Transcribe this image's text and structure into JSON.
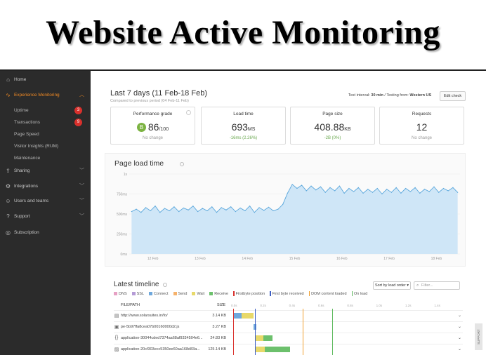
{
  "banner": {
    "title": "Website Active Monitoring"
  },
  "sidebar": {
    "items": [
      {
        "label": "Home",
        "icon": "home-icon"
      },
      {
        "label": "Experience Monitoring",
        "icon": "pulse-icon",
        "active": true
      },
      {
        "label": "Sharing",
        "icon": "share-icon"
      },
      {
        "label": "Integrations",
        "icon": "integrations-icon"
      },
      {
        "label": "Users and teams",
        "icon": "users-icon"
      },
      {
        "label": "Support",
        "icon": "help-icon"
      },
      {
        "label": "Subscription",
        "icon": "subscription-icon"
      }
    ],
    "subitems": [
      {
        "label": "Uptime",
        "badge": "3"
      },
      {
        "label": "Transactions",
        "badge": "9"
      },
      {
        "label": "Page Speed"
      },
      {
        "label": "Visitor Insights (RUM)"
      },
      {
        "label": "Maintenance"
      }
    ]
  },
  "header": {
    "period": "Last 7 days (11 Feb-18 Feb)",
    "compared": "Compared to previous period (04 Feb-11 Feb)",
    "test_interval_label": "Test interval:",
    "test_interval": "30 min",
    "testing_from_label": "/ Testing from:",
    "testing_from": "Western US",
    "edit_check": "Edit check"
  },
  "cards": [
    {
      "title": "Performance grade",
      "grade": "B",
      "value": "86",
      "unit": "/100",
      "sub": "No change"
    },
    {
      "title": "Load time",
      "value": "693",
      "unit": "MS",
      "sub": "-16ms (2.26%)"
    },
    {
      "title": "Page size",
      "value": "408.88",
      "unit": "KB",
      "sub": "-2B (0%)"
    },
    {
      "title": "Requests",
      "value": "12",
      "unit": "",
      "sub": "No change"
    }
  ],
  "chart_data": {
    "type": "area",
    "title": "Page load time",
    "y_ticks": [
      "0ms",
      "250ms",
      "500ms",
      "750ms",
      "1s"
    ],
    "ylim": [
      0,
      1000
    ],
    "x_ticks": [
      "12 Feb",
      "13 Feb",
      "14 Feb",
      "15 Feb",
      "16 Feb",
      "17 Feb",
      "18 Feb"
    ],
    "x_range": [
      11.5,
      18.5
    ],
    "series": [
      {
        "values": [
          [
            11.55,
            530
          ],
          [
            11.65,
            560
          ],
          [
            11.75,
            520
          ],
          [
            11.85,
            580
          ],
          [
            11.95,
            540
          ],
          [
            12.05,
            600
          ],
          [
            12.15,
            520
          ],
          [
            12.25,
            570
          ],
          [
            12.35,
            540
          ],
          [
            12.45,
            590
          ],
          [
            12.55,
            530
          ],
          [
            12.65,
            575
          ],
          [
            12.75,
            550
          ],
          [
            12.85,
            600
          ],
          [
            12.95,
            530
          ],
          [
            13.05,
            570
          ],
          [
            13.15,
            540
          ],
          [
            13.25,
            590
          ],
          [
            13.35,
            520
          ],
          [
            13.45,
            580
          ],
          [
            13.55,
            550
          ],
          [
            13.65,
            590
          ],
          [
            13.75,
            530
          ],
          [
            13.85,
            575
          ],
          [
            13.95,
            540
          ],
          [
            14.05,
            600
          ],
          [
            14.15,
            520
          ],
          [
            14.25,
            580
          ],
          [
            14.35,
            545
          ],
          [
            14.45,
            585
          ],
          [
            14.55,
            540
          ],
          [
            14.65,
            560
          ],
          [
            14.75,
            620
          ],
          [
            14.85,
            760
          ],
          [
            14.95,
            870
          ],
          [
            15.05,
            820
          ],
          [
            15.15,
            860
          ],
          [
            15.25,
            790
          ],
          [
            15.35,
            850
          ],
          [
            15.45,
            800
          ],
          [
            15.55,
            840
          ],
          [
            15.65,
            770
          ],
          [
            15.75,
            830
          ],
          [
            15.85,
            790
          ],
          [
            15.95,
            850
          ],
          [
            16.05,
            760
          ],
          [
            16.15,
            820
          ],
          [
            16.25,
            780
          ],
          [
            16.35,
            830
          ],
          [
            16.45,
            760
          ],
          [
            16.55,
            810
          ],
          [
            16.65,
            770
          ],
          [
            16.75,
            820
          ],
          [
            16.85,
            750
          ],
          [
            16.95,
            810
          ],
          [
            17.05,
            770
          ],
          [
            17.15,
            830
          ],
          [
            17.25,
            760
          ],
          [
            17.35,
            820
          ],
          [
            17.45,
            780
          ],
          [
            17.55,
            830
          ],
          [
            17.65,
            760
          ],
          [
            17.75,
            810
          ],
          [
            17.85,
            780
          ],
          [
            17.95,
            840
          ],
          [
            18.05,
            770
          ],
          [
            18.15,
            820
          ],
          [
            18.25,
            790
          ],
          [
            18.35,
            830
          ],
          [
            18.45,
            770
          ]
        ]
      }
    ],
    "fill": "#cfe6f7",
    "stroke": "#5aa7dc"
  },
  "timeline": {
    "title": "Latest timeline",
    "legend": [
      {
        "label": "DNS",
        "color": "#e6a0c4",
        "kind": "box"
      },
      {
        "label": "SSL",
        "color": "#b59bd6",
        "kind": "box"
      },
      {
        "label": "Connect",
        "color": "#6fa8dc",
        "kind": "box"
      },
      {
        "label": "Send",
        "color": "#f6b26b",
        "kind": "box"
      },
      {
        "label": "Wait",
        "color": "#e8d96a",
        "kind": "box"
      },
      {
        "label": "Receive",
        "color": "#6cc06c",
        "kind": "box"
      },
      {
        "label": "Firstbyte position",
        "color": "#d9302c",
        "kind": "line"
      },
      {
        "label": "First byte received",
        "color": "#3d5fc4",
        "kind": "line"
      },
      {
        "label": "DOM content loaded",
        "color": "#f0a030",
        "kind": "line"
      },
      {
        "label": "On load",
        "color": "#5cb85c",
        "kind": "line"
      }
    ],
    "sort_label": "Sort by load order",
    "filter_placeholder": "Filter...",
    "columns": {
      "file": "FILE/PATH",
      "size": "SIZE"
    },
    "ticks": [
      "0.0s",
      "0.2s",
      "0.4s",
      "0.6s",
      "0.8s",
      "1.0s",
      "1.2s",
      "1.4s"
    ],
    "rows": [
      {
        "icon": "page-icon",
        "file": "http://www.solarsuites.in/fo/",
        "size": "3.14 KB",
        "segs": [
          {
            "start": 0.0,
            "end": 0.06,
            "color": "#6fa8dc"
          },
          {
            "start": 0.06,
            "end": 0.14,
            "color": "#e8d96a"
          }
        ]
      },
      {
        "icon": "script-icon",
        "file": "pe-5b97ffa8cea07b00160000d2.js",
        "size": "3.27 KB",
        "segs": [
          {
            "start": 0.14,
            "end": 0.16,
            "color": "#6fa8dc"
          }
        ]
      },
      {
        "icon": "code-icon",
        "file": "application-30044cded7374aa68af9334504e6...",
        "size": "24.83 KB",
        "segs": [
          {
            "start": 0.15,
            "end": 0.21,
            "color": "#e8d96a"
          },
          {
            "start": 0.21,
            "end": 0.27,
            "color": "#6cc06c"
          }
        ]
      },
      {
        "icon": "image-icon",
        "file": "application-20cf303ecc5350ee60aa168d83a...",
        "size": "125.14 KB",
        "segs": [
          {
            "start": 0.15,
            "end": 0.22,
            "color": "#e8d96a"
          },
          {
            "start": 0.22,
            "end": 0.39,
            "color": "#6cc06c"
          }
        ]
      }
    ],
    "markers": [
      {
        "t": 0.0,
        "color": "#d9302c"
      },
      {
        "t": 0.15,
        "color": "#3d5fc4"
      },
      {
        "t": 0.48,
        "color": "#f0a030"
      },
      {
        "t": 0.68,
        "color": "#5cb85c"
      }
    ]
  },
  "support_tab": "SUPPORT"
}
